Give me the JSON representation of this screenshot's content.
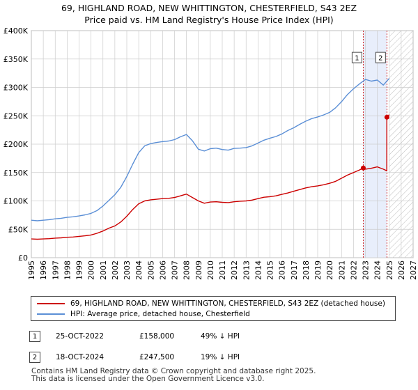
{
  "title_line1": "69, HIGHLAND ROAD, NEW WHITTINGTON, CHESTERFIELD, S43 2EZ",
  "title_line2": "Price paid vs. HM Land Registry's House Price Index (HPI)",
  "colors": {
    "property": "#cc0000",
    "hpi": "#5b8fd6",
    "band": "#e8eefb",
    "grid": "#cccccc"
  },
  "chart_data": {
    "type": "line",
    "title": "Price paid vs. HM Land Registry's House Price Index (HPI)",
    "xlabel": "",
    "ylabel": "",
    "xlim": [
      1995,
      2027
    ],
    "ylim": [
      0,
      400000
    ],
    "x_ticks": [
      "1995",
      "1996",
      "1997",
      "1998",
      "1999",
      "2000",
      "2001",
      "2002",
      "2003",
      "2004",
      "2005",
      "2006",
      "2007",
      "2008",
      "2009",
      "2010",
      "2011",
      "2012",
      "2013",
      "2014",
      "2015",
      "2016",
      "2017",
      "2018",
      "2019",
      "2020",
      "2021",
      "2022",
      "2023",
      "2024",
      "2025",
      "2026",
      "2027"
    ],
    "y_ticks": [
      {
        "value": 0,
        "label": "£0"
      },
      {
        "value": 50000,
        "label": "£50K"
      },
      {
        "value": 100000,
        "label": "£100K"
      },
      {
        "value": 150000,
        "label": "£150K"
      },
      {
        "value": 200000,
        "label": "£200K"
      },
      {
        "value": 250000,
        "label": "£250K"
      },
      {
        "value": 300000,
        "label": "£300K"
      },
      {
        "value": 350000,
        "label": "£350K"
      },
      {
        "value": 400000,
        "label": "£400K"
      }
    ],
    "grid": true,
    "shaded_period": [
      2022.82,
      2024.8
    ],
    "hatched_future_from": 2025.0,
    "series": [
      {
        "name": "69, HIGHLAND ROAD, NEW WHITTINGTON, CHESTERFIELD, S43 2EZ (detached house)",
        "color": "#cc0000",
        "x": [
          1995,
          1995.5,
          1996,
          1996.5,
          1997,
          1997.5,
          1998,
          1998.5,
          1999,
          1999.5,
          2000,
          2000.5,
          2001,
          2001.5,
          2002,
          2002.5,
          2003,
          2003.5,
          2004,
          2004.5,
          2005,
          2005.5,
          2006,
          2006.5,
          2007,
          2007.5,
          2008,
          2008.5,
          2009,
          2009.5,
          2010,
          2010.5,
          2011,
          2011.5,
          2012,
          2012.5,
          2013,
          2013.5,
          2014,
          2014.5,
          2015,
          2015.5,
          2016,
          2016.5,
          2017,
          2017.5,
          2018,
          2018.5,
          2019,
          2019.5,
          2020,
          2020.5,
          2021,
          2021.5,
          2022,
          2022.5,
          2022.82,
          2023,
          2023.5,
          2024,
          2024.5,
          2024.79,
          2024.8,
          2025
        ],
        "y": [
          33000,
          32500,
          33000,
          33500,
          34500,
          35000,
          36000,
          36500,
          37500,
          38500,
          40000,
          43000,
          47000,
          52000,
          56000,
          63000,
          73000,
          85000,
          95000,
          100000,
          102000,
          103000,
          104000,
          104500,
          106000,
          109000,
          112000,
          106000,
          100000,
          96000,
          98000,
          98500,
          97500,
          97000,
          98500,
          99500,
          100000,
          101500,
          104000,
          106500,
          107500,
          109000,
          111500,
          114000,
          117000,
          120000,
          123000,
          125000,
          126500,
          128500,
          131000,
          134500,
          140000,
          145500,
          150000,
          154500,
          158000,
          156000,
          157500,
          160000,
          156000,
          153000,
          247500,
          252000
        ]
      },
      {
        "name": "HPI: Average price, detached house, Chesterfield",
        "color": "#5b8fd6",
        "x": [
          1995,
          1995.5,
          1996,
          1996.5,
          1997,
          1997.5,
          1998,
          1998.5,
          1999,
          1999.5,
          2000,
          2000.5,
          2001,
          2001.5,
          2002,
          2002.5,
          2003,
          2003.5,
          2004,
          2004.5,
          2005,
          2005.5,
          2006,
          2006.5,
          2007,
          2007.5,
          2008,
          2008.5,
          2009,
          2009.5,
          2010,
          2010.5,
          2011,
          2011.5,
          2012,
          2012.5,
          2013,
          2013.5,
          2014,
          2014.5,
          2015,
          2015.5,
          2016,
          2016.5,
          2017,
          2017.5,
          2018,
          2018.5,
          2019,
          2019.5,
          2020,
          2020.5,
          2021,
          2021.5,
          2022,
          2022.5,
          2023,
          2023.5,
          2024,
          2024.5,
          2025
        ],
        "y": [
          66000,
          65000,
          66000,
          67000,
          68500,
          69500,
          71000,
          72000,
          73500,
          75500,
          78000,
          83000,
          91000,
          101000,
          111000,
          124000,
          143000,
          165000,
          185000,
          197000,
          201000,
          203000,
          204500,
          205500,
          208000,
          213000,
          217000,
          206000,
          191000,
          188000,
          192000,
          193000,
          190500,
          189500,
          192500,
          193000,
          194000,
          197000,
          202000,
          207000,
          210500,
          213500,
          218000,
          224000,
          229000,
          235000,
          240500,
          245000,
          248000,
          251500,
          256000,
          264000,
          275000,
          287500,
          297500,
          306000,
          314000,
          311000,
          313000,
          304000,
          316000
        ]
      }
    ],
    "annotations": [
      {
        "label": "1",
        "x": 2022.82,
        "y": 158000
      },
      {
        "label": "2",
        "x": 2024.8,
        "y": 247500
      }
    ]
  },
  "legend": {
    "property_label": "69, HIGHLAND ROAD, NEW WHITTINGTON, CHESTERFIELD, S43 2EZ (detached house)",
    "hpi_label": "HPI: Average price, detached house, Chesterfield"
  },
  "transactions": [
    {
      "num": "1",
      "date": "25-OCT-2022",
      "price": "£158,000",
      "hpi": "49% ↓ HPI"
    },
    {
      "num": "2",
      "date": "18-OCT-2024",
      "price": "£247,500",
      "hpi": "19% ↓ HPI"
    }
  ],
  "footer_line1": "Contains HM Land Registry data © Crown copyright and database right 2025.",
  "footer_line2": "This data is licensed under the Open Government Licence v3.0."
}
